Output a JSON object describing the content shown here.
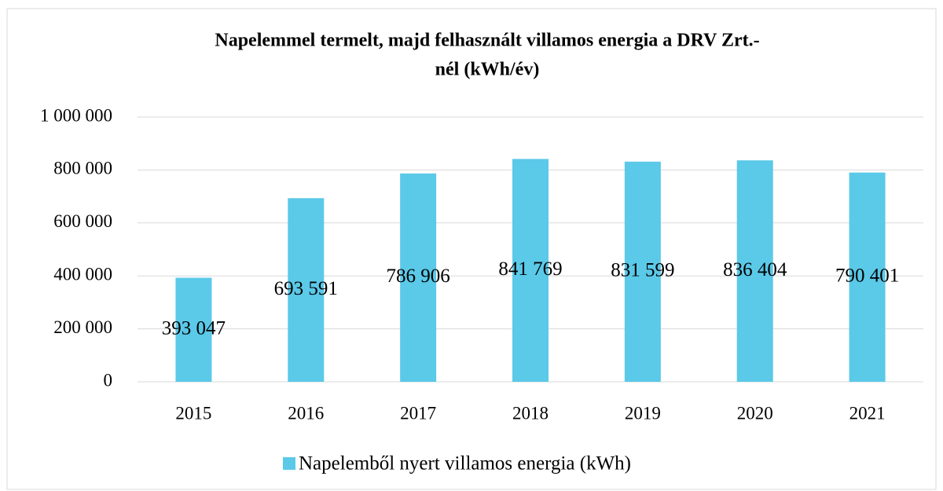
{
  "chart_data": {
    "type": "bar",
    "title": [
      "Napelemmel termelt, majd felhasznált villamos energia a DRV Zrt.-",
      "nél (kWh/év)"
    ],
    "categories": [
      "2015",
      "2016",
      "2017",
      "2018",
      "2019",
      "2020",
      "2021"
    ],
    "series": [
      {
        "name": "Napelemből nyert villamos energia (kWh)",
        "color": "#5bc9e8",
        "values": [
          393047,
          693591,
          786906,
          841769,
          831599,
          836404,
          790401
        ],
        "value_labels": [
          "393 047",
          "693 591",
          "786 906",
          "841 769",
          "831 599",
          "836 404",
          "790 401"
        ]
      }
    ],
    "ylim": [
      0,
      1000000
    ],
    "yticks": [
      0,
      {
        "value": 200000,
        "label": "200 000"
      },
      {
        "value": 400000,
        "label": "400 000"
      },
      {
        "value": 600000,
        "label": "600 000"
      },
      {
        "value": 800000,
        "label": "800 000"
      },
      {
        "value": 1000000,
        "label": "1 000 000"
      }
    ],
    "grid": true,
    "legend": "bottom"
  }
}
